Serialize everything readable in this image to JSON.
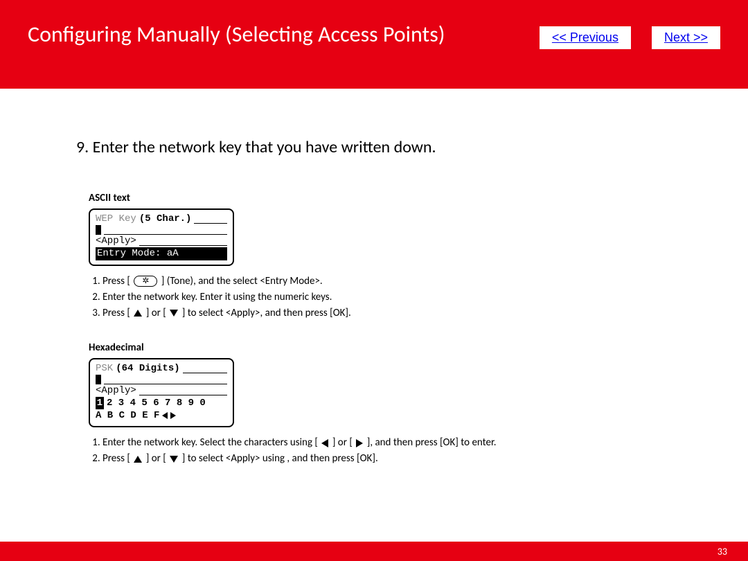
{
  "header": {
    "title": "Configuring Manually (Selecting Access Points)",
    "prev_label": "<< Previous",
    "next_label": "Next >>"
  },
  "step": {
    "number": "9.",
    "text": "Enter the network key that you have written down."
  },
  "ascii": {
    "label": "ASCII text",
    "lcd": {
      "line1_gray": "WEP Key",
      "line1_bold": "(5 Char.)",
      "apply": "<Apply>",
      "entry_mode": "Entry Mode: aA"
    },
    "steps": {
      "s1_a": "Press [",
      "s1_b": "] (Tone), and the select <Entry Mode>.",
      "s2": "Enter the network key. Enter it using the numeric keys.",
      "s3_a": "Press [",
      "s3_b": "] or [",
      "s3_c": "] to select <Apply>, and then press [OK]."
    }
  },
  "hex": {
    "label": "Hexadecimal",
    "lcd": {
      "line1_gray": "PSK",
      "line1_bold": "(64 Digits)",
      "apply": "<Apply>",
      "numbers_sel": "1",
      "numbers_rest": "2 3 4 5 6 7 8 9 0",
      "letters": "A B C D E F"
    },
    "steps": {
      "s1_a": "Enter the network key. Select the characters using [",
      "s1_b": "] or [",
      "s1_c": "], and then press [OK] to enter.",
      "s2_a": "Press [",
      "s2_b": "] or [",
      "s2_c": "] to select <Apply> using , and then press [OK]."
    }
  },
  "footer": {
    "page": "33"
  },
  "colors": {
    "red": "#e60012",
    "link": "#0000ee"
  }
}
